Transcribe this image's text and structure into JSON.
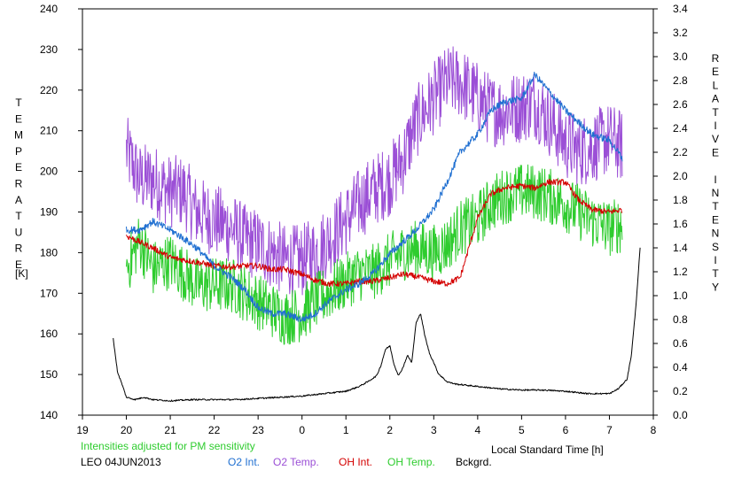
{
  "chart_data": {
    "type": "line",
    "left_axis_letters": [
      "T",
      "E",
      "M",
      "P",
      "E",
      "R",
      "A",
      "T",
      "U",
      "R",
      "E"
    ],
    "left_axis_unit": "[K]",
    "right_axis_letters": [
      "R",
      "E",
      "L",
      "A",
      "T",
      "I",
      "V",
      "E",
      " ",
      "I",
      "N",
      "T",
      "E",
      "N",
      "S",
      "I",
      "T",
      "Y"
    ],
    "xlabel": "Local Standard Time [h]",
    "x_ticks": [
      "19",
      "20",
      "21",
      "22",
      "23",
      "0",
      "1",
      "2",
      "3",
      "4",
      "5",
      "6",
      "7",
      "8"
    ],
    "x_ticks_hours": [
      19,
      20,
      21,
      22,
      23,
      24,
      25,
      26,
      27,
      28,
      29,
      30,
      31,
      32
    ],
    "xlim": [
      19,
      32
    ],
    "ylim_left": [
      140,
      240
    ],
    "y_ticks_left": [
      "140",
      "150",
      "160",
      "170",
      "180",
      "190",
      "200",
      "210",
      "220",
      "230",
      "240"
    ],
    "ylim_right": [
      0,
      3.4
    ],
    "y_ticks_right": [
      "0.0",
      "0.2",
      "0.4",
      "0.6",
      "0.8",
      "1.0",
      "1.2",
      "1.4",
      "1.6",
      "1.8",
      "2.0",
      "2.2",
      "2.4",
      "2.6",
      "2.8",
      "3.0",
      "3.2",
      "3.4"
    ],
    "note": "Intensities adjusted for PM sensitivity",
    "station": "LEO 04JUN2013",
    "series": [
      {
        "name": "O2 Int.",
        "color": "#1f6fd1",
        "axis": "right",
        "noise": 0.03,
        "x": [
          20.0,
          20.3,
          20.6,
          21.0,
          21.3,
          21.6,
          22.0,
          22.4,
          22.7,
          23.0,
          23.3,
          23.6,
          24.0,
          24.3,
          24.6,
          25.0,
          25.3,
          25.6,
          26.0,
          26.3,
          26.6,
          27.0,
          27.3,
          27.6,
          28.0,
          28.3,
          28.6,
          29.0,
          29.3,
          29.6,
          30.0,
          30.3,
          30.6,
          31.0,
          31.3
        ],
        "y": [
          1.55,
          1.55,
          1.62,
          1.55,
          1.48,
          1.4,
          1.25,
          1.15,
          1.05,
          0.9,
          0.85,
          0.85,
          0.8,
          0.85,
          0.95,
          1.05,
          1.1,
          1.18,
          1.35,
          1.45,
          1.55,
          1.72,
          1.95,
          2.2,
          2.35,
          2.55,
          2.62,
          2.65,
          2.85,
          2.72,
          2.55,
          2.45,
          2.35,
          2.3,
          2.15
        ]
      },
      {
        "name": "O2 Temp.",
        "color": "#9b4fd6",
        "axis": "left",
        "noise": 9,
        "x": [
          20.0,
          20.3,
          20.6,
          21.0,
          21.3,
          21.6,
          22.0,
          22.4,
          22.7,
          23.0,
          23.3,
          23.6,
          24.0,
          24.3,
          24.6,
          25.0,
          25.3,
          25.6,
          26.0,
          26.3,
          26.6,
          27.0,
          27.3,
          27.6,
          28.0,
          28.3,
          28.6,
          29.0,
          29.3,
          29.6,
          30.0,
          30.3,
          30.6,
          31.0,
          31.3
        ],
        "y": [
          205,
          198,
          198,
          195,
          195,
          190,
          188,
          186,
          183,
          182,
          180,
          178,
          178,
          180,
          183,
          188,
          192,
          195,
          198,
          203,
          212,
          218,
          222,
          222,
          218,
          215,
          215,
          216,
          217,
          213,
          207,
          205,
          206,
          208,
          206
        ]
      },
      {
        "name": "OH Int.",
        "color": "#d40000",
        "axis": "right",
        "noise": 0.025,
        "x": [
          20.0,
          20.3,
          20.6,
          21.0,
          21.3,
          21.6,
          22.0,
          22.4,
          22.7,
          23.0,
          23.3,
          23.6,
          24.0,
          24.3,
          24.6,
          25.0,
          25.3,
          25.6,
          26.0,
          26.3,
          26.6,
          27.0,
          27.3,
          27.6,
          28.0,
          28.3,
          28.6,
          29.0,
          29.3,
          29.6,
          30.0,
          30.3,
          30.6,
          31.0,
          31.3
        ],
        "y": [
          1.5,
          1.45,
          1.4,
          1.32,
          1.3,
          1.28,
          1.25,
          1.24,
          1.25,
          1.25,
          1.22,
          1.22,
          1.18,
          1.13,
          1.1,
          1.1,
          1.12,
          1.12,
          1.15,
          1.18,
          1.16,
          1.12,
          1.1,
          1.15,
          1.65,
          1.85,
          1.9,
          1.92,
          1.9,
          1.95,
          1.95,
          1.8,
          1.72,
          1.7,
          1.72
        ]
      },
      {
        "name": "OH Temp.",
        "color": "#2ecc2e",
        "axis": "left",
        "noise": 7,
        "x": [
          20.0,
          20.3,
          20.6,
          21.0,
          21.3,
          21.6,
          22.0,
          22.4,
          22.7,
          23.0,
          23.3,
          23.6,
          24.0,
          24.3,
          24.6,
          25.0,
          25.3,
          25.6,
          26.0,
          26.3,
          26.6,
          27.0,
          27.3,
          27.6,
          28.0,
          28.3,
          28.6,
          29.0,
          29.3,
          29.6,
          30.0,
          30.3,
          30.6,
          31.0,
          31.3
        ],
        "y": [
          176,
          183,
          176,
          178,
          175,
          172,
          172,
          172,
          170,
          168,
          166,
          164,
          165,
          168,
          170,
          173,
          175,
          175,
          178,
          180,
          181,
          180,
          182,
          186,
          188,
          192,
          194,
          195,
          195,
          194,
          192,
          190,
          188,
          186,
          187
        ]
      },
      {
        "name": "Bckgrd.",
        "color": "#000000",
        "axis": "right",
        "noise": 0.006,
        "x": [
          19.7,
          19.8,
          19.9,
          20.0,
          20.2,
          20.3,
          20.4,
          20.6,
          21.0,
          21.5,
          22.0,
          22.5,
          23.0,
          23.5,
          24.0,
          24.5,
          25.0,
          25.3,
          25.5,
          25.7,
          25.8,
          25.9,
          26.0,
          26.1,
          26.2,
          26.3,
          26.4,
          26.5,
          26.6,
          26.7,
          26.8,
          26.9,
          27.0,
          27.1,
          27.3,
          27.5,
          28.0,
          28.5,
          29.0,
          29.5,
          30.0,
          30.5,
          31.0,
          31.2,
          31.3,
          31.4,
          31.5,
          31.6,
          31.7
        ],
        "y": [
          0.64,
          0.36,
          0.26,
          0.15,
          0.13,
          0.14,
          0.15,
          0.13,
          0.12,
          0.13,
          0.13,
          0.13,
          0.14,
          0.15,
          0.16,
          0.18,
          0.2,
          0.24,
          0.28,
          0.33,
          0.42,
          0.55,
          0.58,
          0.42,
          0.33,
          0.4,
          0.5,
          0.44,
          0.78,
          0.85,
          0.66,
          0.52,
          0.44,
          0.35,
          0.28,
          0.26,
          0.24,
          0.22,
          0.21,
          0.21,
          0.2,
          0.18,
          0.18,
          0.22,
          0.26,
          0.3,
          0.5,
          0.9,
          1.4
        ]
      }
    ]
  }
}
